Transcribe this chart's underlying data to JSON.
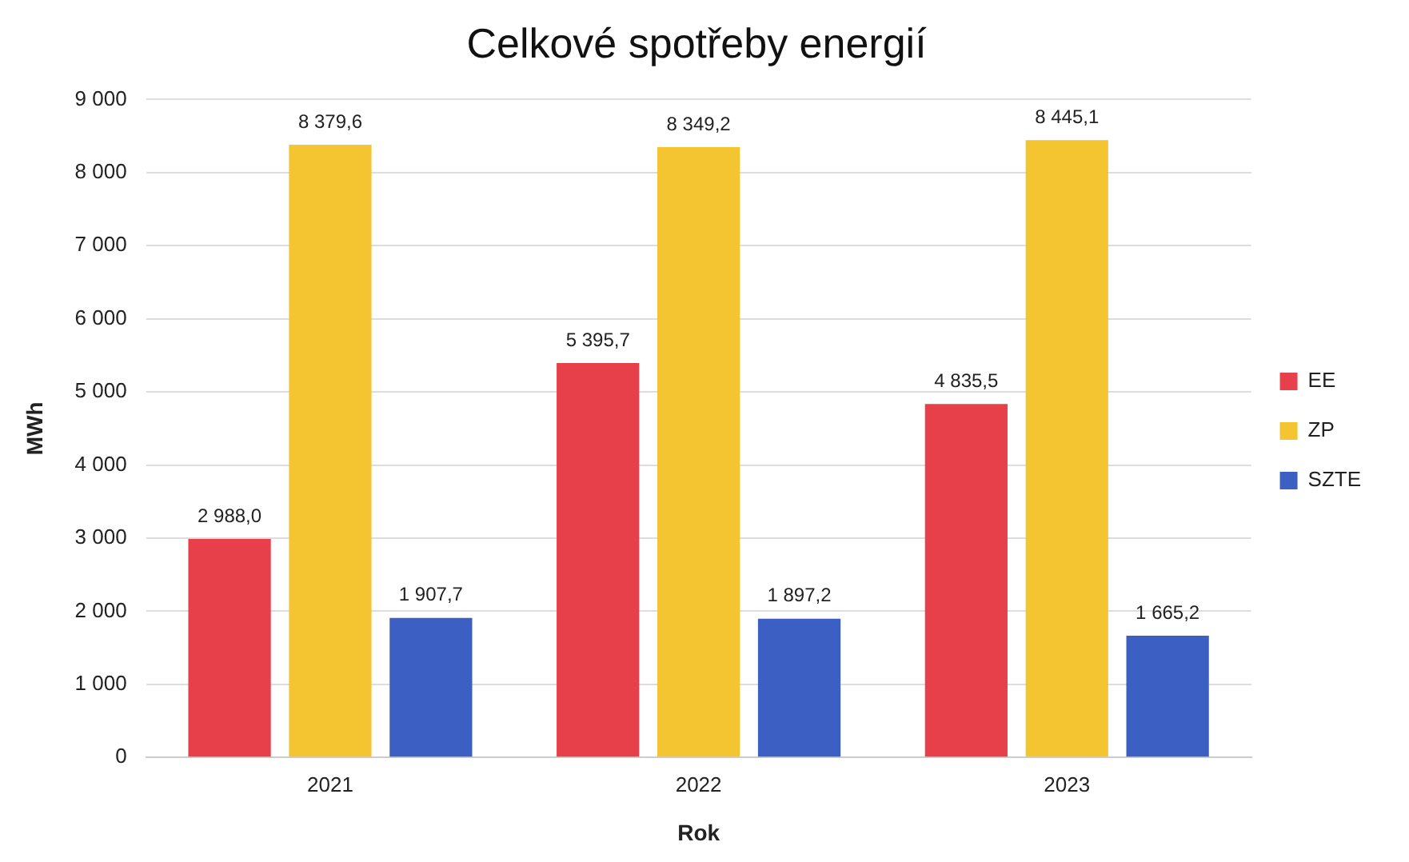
{
  "chart_data": {
    "type": "bar",
    "title": "Celkové spotřeby energií",
    "xlabel": "Rok",
    "ylabel": "MWh",
    "categories": [
      "2021",
      "2022",
      "2023"
    ],
    "series": [
      {
        "name": "EE",
        "color": "#e8404a",
        "values": [
          2988.0,
          5395.7,
          4835.5
        ],
        "value_labels": [
          "2 988,0",
          "5 395,7",
          "4 835,5"
        ]
      },
      {
        "name": "ZP",
        "color": "#f5c431",
        "values": [
          8379.6,
          8349.2,
          8445.1
        ],
        "value_labels": [
          "8 379,6",
          "8 349,2",
          "8 445,1"
        ]
      },
      {
        "name": "SZTE",
        "color": "#3b5fc2",
        "values": [
          1907.7,
          1897.2,
          1665.2
        ],
        "value_labels": [
          "1 907,7",
          "1 897,2",
          "1 665,2"
        ]
      }
    ],
    "ylim": [
      0,
      9000
    ],
    "yticks": [
      {
        "value": 0,
        "label": "0"
      },
      {
        "value": 1000,
        "label": "1 000"
      },
      {
        "value": 2000,
        "label": "2 000"
      },
      {
        "value": 3000,
        "label": "3 000"
      },
      {
        "value": 4000,
        "label": "4 000"
      },
      {
        "value": 5000,
        "label": "5 000"
      },
      {
        "value": 6000,
        "label": "6 000"
      },
      {
        "value": 7000,
        "label": "7 000"
      },
      {
        "value": 8000,
        "label": "8 000"
      },
      {
        "value": 9000,
        "label": "9 000"
      }
    ],
    "grid": "y",
    "legend": "right"
  }
}
